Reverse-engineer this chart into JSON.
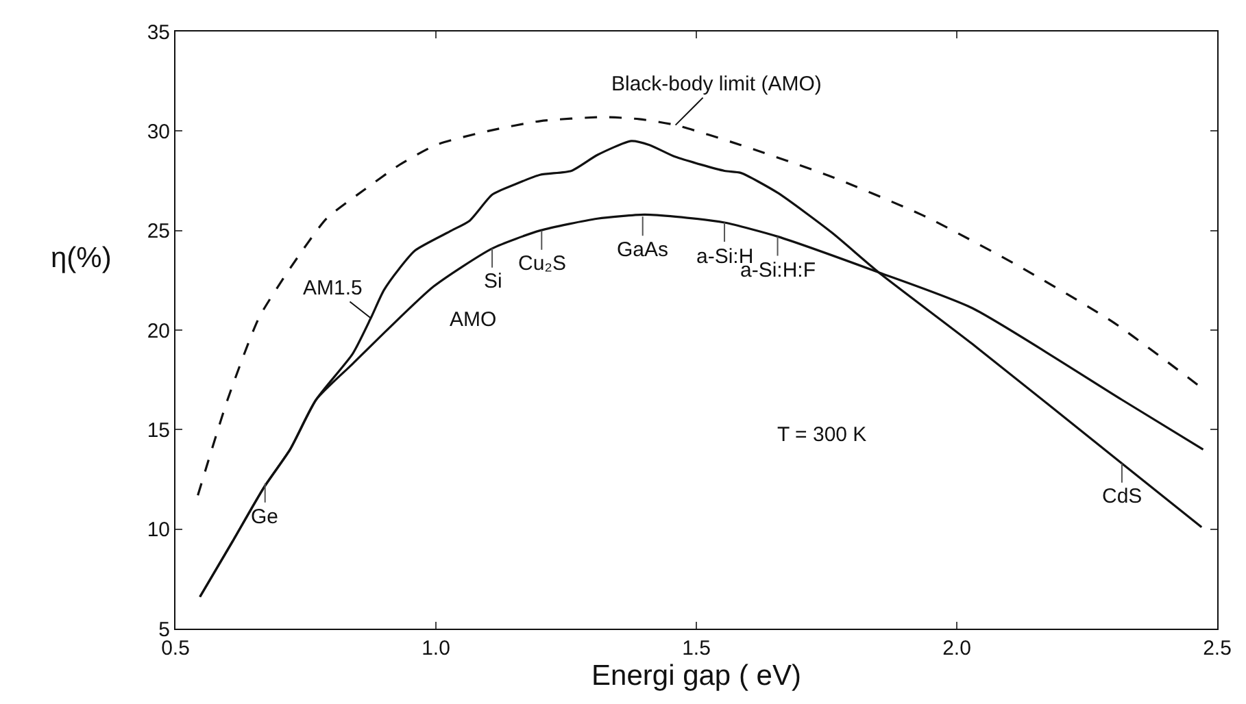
{
  "chart_data": {
    "type": "line",
    "xlabel": "Energi gap ( eV)",
    "ylabel": "η(%)",
    "xlim": [
      0.5,
      2.5
    ],
    "xticks": [
      {
        "value": 0.5,
        "label": "0.5"
      },
      {
        "value": 1.0,
        "label": "1.0"
      },
      {
        "value": 1.5,
        "label": "1.5"
      },
      {
        "value": 2.0,
        "label": "2.0"
      },
      {
        "value": 2.5,
        "label": "2.5"
      }
    ],
    "ylim": [
      5,
      35
    ],
    "yticks": [
      5,
      10,
      15,
      20,
      25,
      30,
      35
    ],
    "grid": false,
    "legend": false,
    "marker": "none",
    "series": [
      {
        "name": "Black-body limit (AMO)",
        "color": "#111111",
        "line_style": "dashed",
        "x": [
          0.543,
          0.6,
          0.66,
          0.72,
          0.79,
          0.86,
          0.93,
          1.0,
          1.1,
          1.2,
          1.32,
          1.39,
          1.46,
          1.585,
          1.76,
          1.94,
          2.12,
          2.3,
          2.47
        ],
        "values": [
          11.7,
          16.5,
          20.6,
          23.1,
          25.6,
          27.0,
          28.3,
          29.3,
          30.0,
          30.5,
          30.7,
          30.6,
          30.3,
          29.3,
          27.7,
          25.7,
          23.2,
          20.4,
          17.1
        ]
      },
      {
        "name": "AM1.5",
        "color": "#111111",
        "line_style": "solid",
        "x": [
          0.547,
          0.61,
          0.67,
          0.72,
          0.77,
          0.84,
          0.875,
          0.9,
          0.93,
          0.96,
          1.03,
          1.065,
          1.108,
          1.15,
          1.2,
          1.26,
          1.31,
          1.375,
          1.41,
          1.46,
          1.554,
          1.585,
          1.656,
          1.76,
          1.85,
          2.03,
          2.317,
          2.47
        ],
        "values": [
          6.6,
          9.4,
          12.1,
          14.0,
          16.5,
          18.8,
          20.6,
          22.0,
          23.1,
          24.0,
          25.0,
          25.5,
          26.8,
          27.3,
          27.8,
          28.0,
          28.8,
          29.5,
          29.3,
          28.7,
          28.0,
          27.9,
          26.9,
          24.9,
          22.9,
          19.3,
          13.3,
          10.1
        ]
      },
      {
        "name": "AMO",
        "color": "#111111",
        "line_style": "solid",
        "x": [
          0.547,
          0.61,
          0.67,
          0.72,
          0.77,
          0.84,
          0.91,
          0.996,
          1.108,
          1.2,
          1.31,
          1.4,
          1.46,
          1.554,
          1.656,
          1.85,
          2.03,
          2.317,
          2.473
        ],
        "values": [
          6.6,
          9.4,
          12.1,
          14.0,
          16.5,
          18.3,
          20.1,
          22.2,
          24.1,
          25.0,
          25.6,
          25.8,
          25.7,
          25.4,
          24.7,
          22.9,
          21.1,
          16.5,
          14.0
        ]
      }
    ],
    "annotations": [
      {
        "text": "Ge",
        "x": 0.672,
        "y": 12.3
      },
      {
        "text": "Si",
        "x": 1.108,
        "y": 24.1
      },
      {
        "text": "Cu₂S",
        "x": 1.203,
        "y": 25.0
      },
      {
        "text": "GaAs",
        "x": 1.397,
        "y": 25.7
      },
      {
        "text": "a-Si:H",
        "x": 1.554,
        "y": 25.4
      },
      {
        "text": "a-Si:H:F",
        "x": 1.656,
        "y": 24.7
      },
      {
        "text": "CdS",
        "x": 2.317,
        "y": 13.3
      },
      "T = 300 K"
    ]
  }
}
